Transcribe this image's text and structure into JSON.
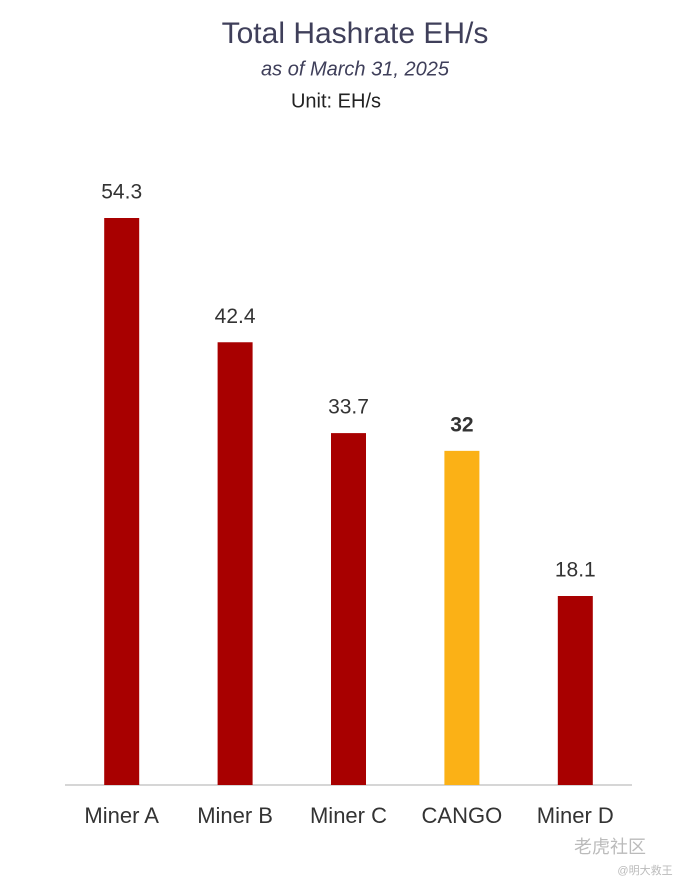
{
  "chart_data": {
    "type": "bar",
    "title": "Total Hashrate EH/s",
    "subtitle": "as of March 31, 2025",
    "unit_label": "Unit: EH/s",
    "categories": [
      "Miner A",
      "Miner B",
      "Miner C",
      "CANGO",
      "Miner D"
    ],
    "values": [
      54.3,
      42.4,
      33.7,
      32,
      18.1
    ],
    "colors": [
      "#a80000",
      "#a80000",
      "#a80000",
      "#fbb116",
      "#a80000"
    ],
    "watermark": [
      "老虎社区",
      "@明大救王"
    ]
  }
}
